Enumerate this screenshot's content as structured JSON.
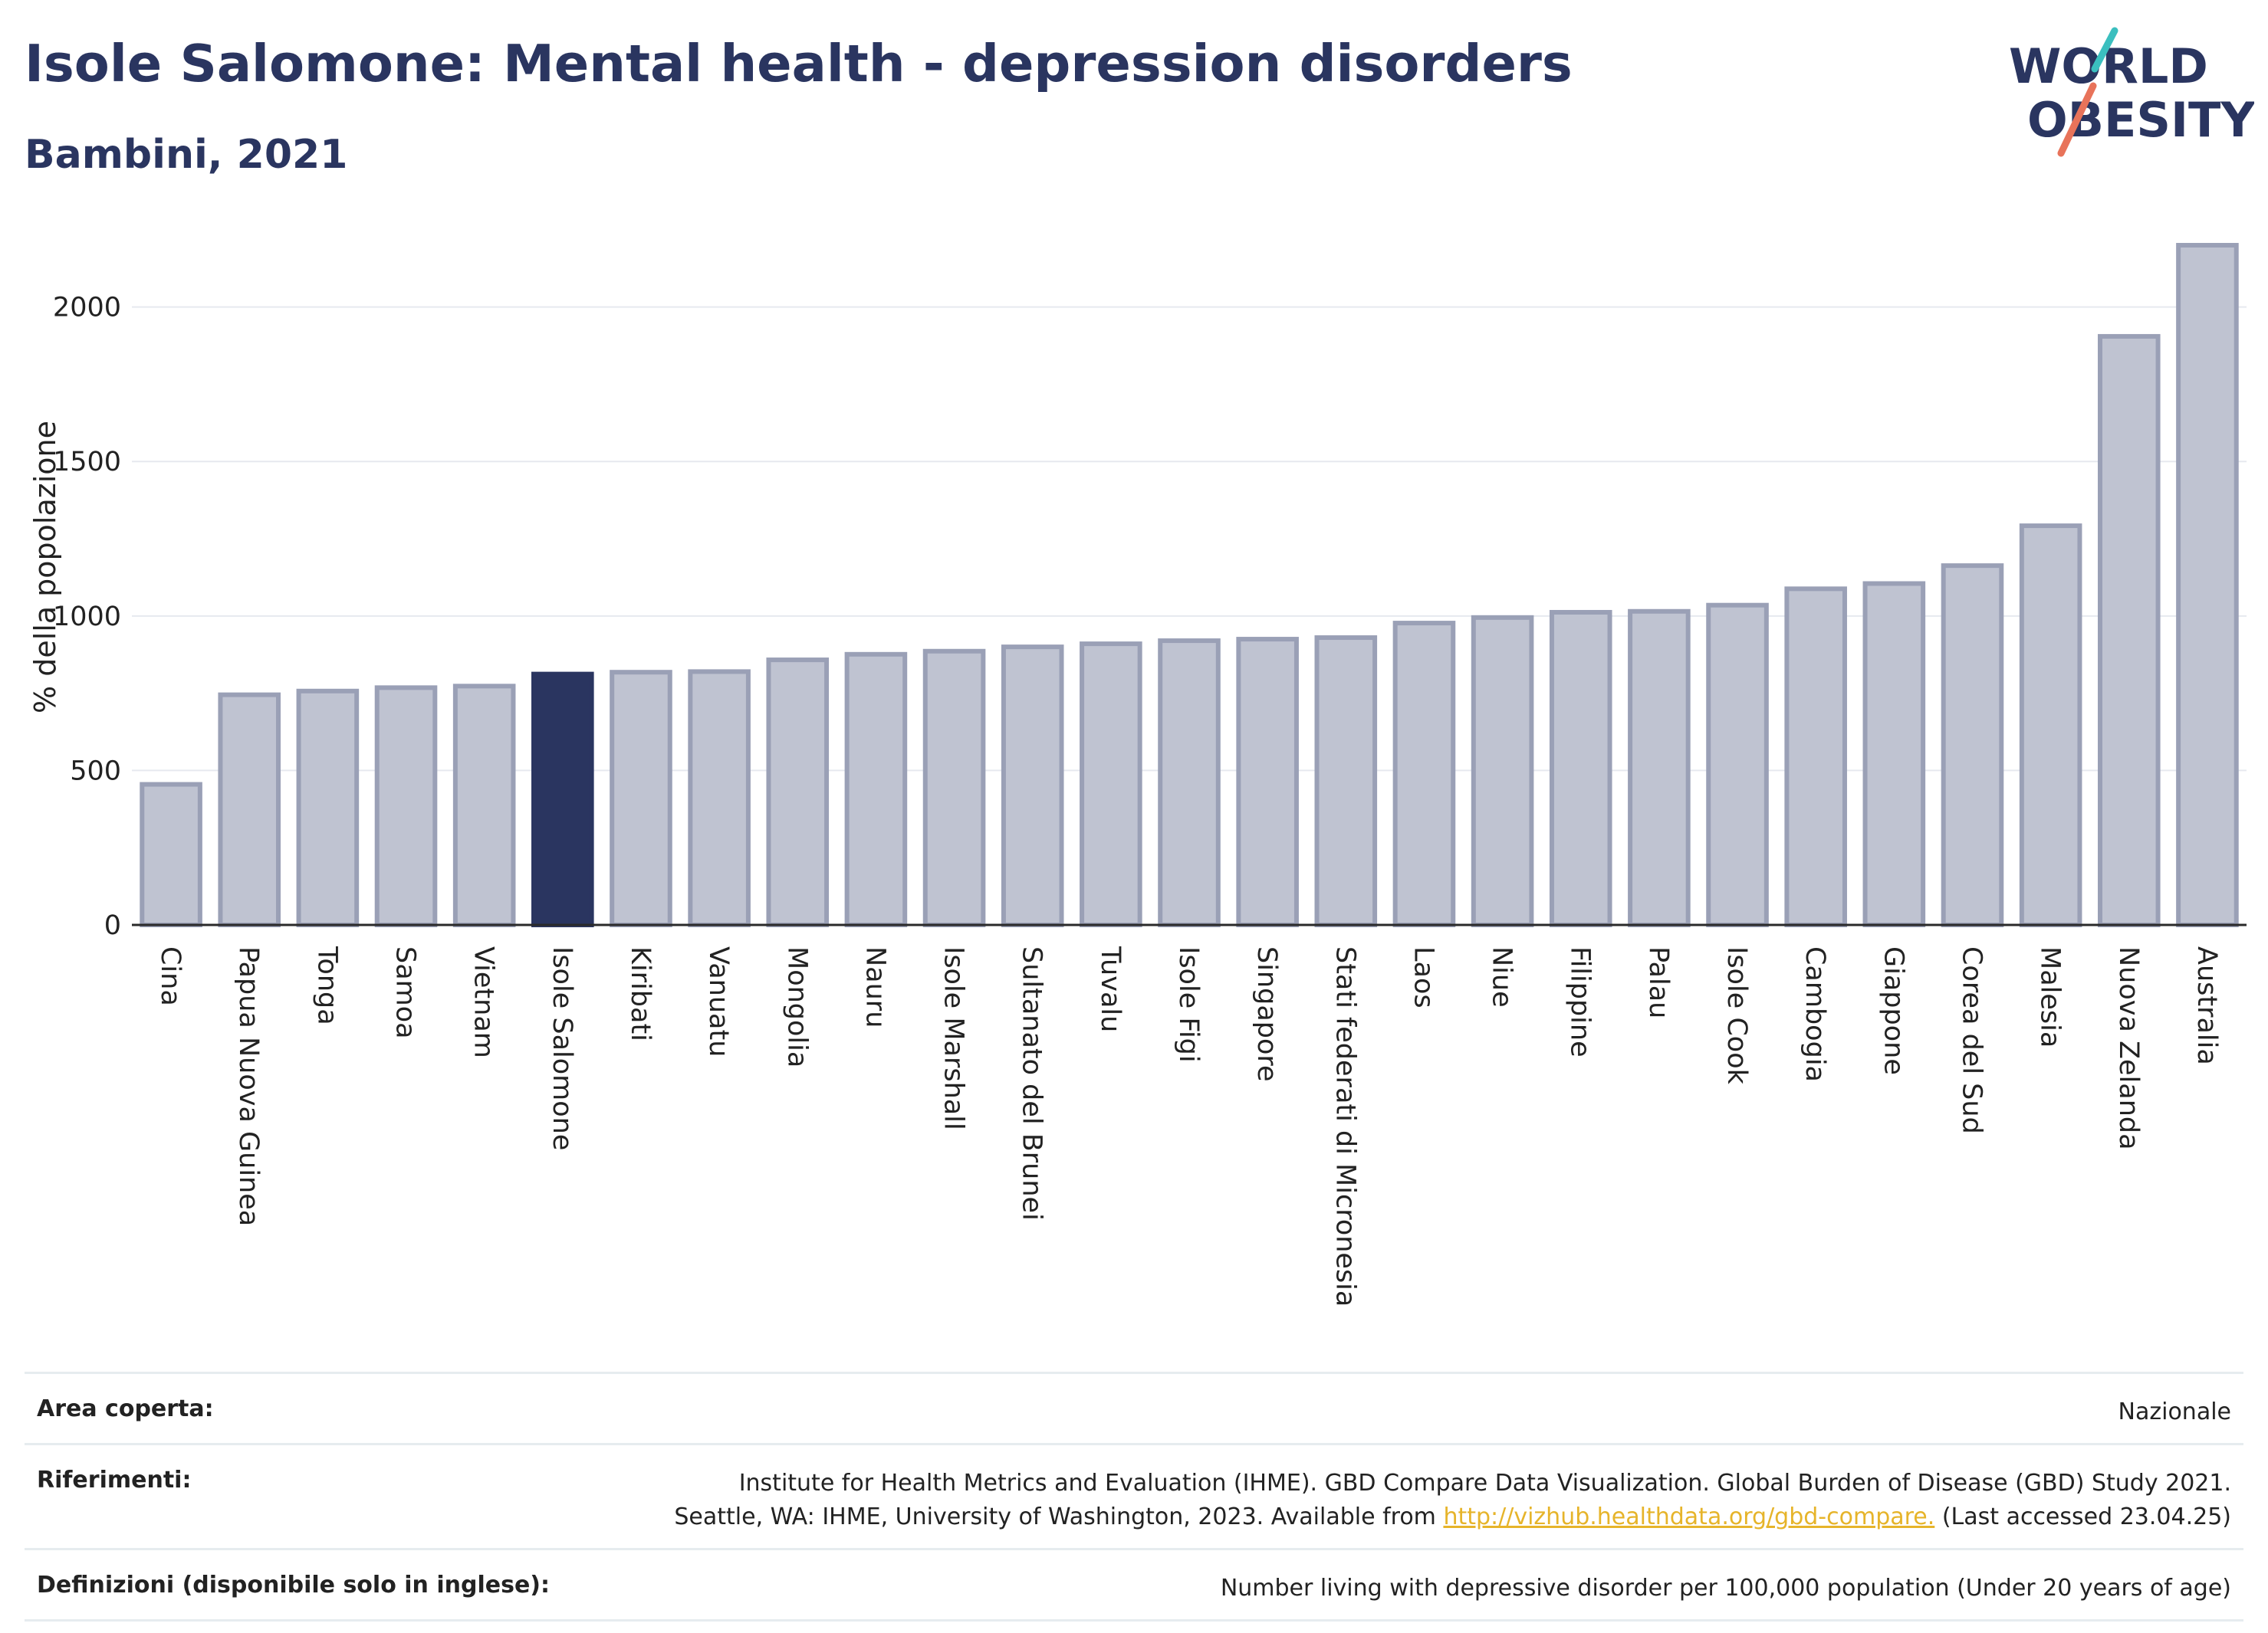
{
  "header": {
    "title": "Isole Salomone: Mental health - depression disorders",
    "subtitle": "Bambini, 2021"
  },
  "logo": {
    "line1": "WORLD",
    "line2": "OBESITY",
    "colors": {
      "text": "#2a3560",
      "accent_teal": "#3bbfbf",
      "accent_red": "#e8735a"
    }
  },
  "chart_data": {
    "type": "bar",
    "title": "Isole Salomone: Mental health - depression disorders",
    "subtitle": "Bambini, 2021",
    "ylabel": "% della popolazione",
    "xlabel": "",
    "ylim": [
      0,
      2200
    ],
    "yticks": [
      0,
      500,
      1000,
      1500,
      2000
    ],
    "grid": true,
    "highlight": "Isole Salomone",
    "colors": {
      "default": "#bfc3d1",
      "default_border": "#9aa0b6",
      "highlight": "#2a3560"
    },
    "categories": [
      "Cina",
      "Papua Nuova Guinea",
      "Tonga",
      "Samoa",
      "Vietnam",
      "Isole Salomone",
      "Kiribati",
      "Vanuatu",
      "Mongolia",
      "Nauru",
      "Isole Marshall",
      "Sultanato del Brunei",
      "Tuvalu",
      "Isole Figi",
      "Singapore",
      "Stati federati di Micronesia",
      "Laos",
      "Niue",
      "Filippine",
      "Palau",
      "Isole Cook",
      "Cambogia",
      "Giappone",
      "Corea del Sud",
      "Malesia",
      "Nuova Zelanda",
      "Australia"
    ],
    "values": [
      455,
      745,
      757,
      768,
      773,
      812,
      818,
      820,
      858,
      876,
      886,
      900,
      910,
      920,
      925,
      930,
      977,
      995,
      1012,
      1015,
      1035,
      1088,
      1105,
      1163,
      1292,
      1905,
      2200
    ]
  },
  "info": {
    "rows": [
      {
        "key": "Area coperta:",
        "value_lines": [
          "Nazionale"
        ]
      },
      {
        "key": "Riferimenti:",
        "line1": "Institute for Health Metrics and Evaluation (IHME). GBD Compare Data Visualization. Global Burden of Disease (GBD) Study 2021.",
        "line2_pre": "Seattle, WA: IHME, University of Washington, 2023. Available from ",
        "link": "http://vizhub.healthdata.org/gbd-compare.",
        "line2_post": " (Last accessed 23.04.25)"
      },
      {
        "key": "Definizioni (disponibile solo in inglese):",
        "value_lines": [
          "Number living with depressive disorder per 100,000 population (Under 20 years of age)"
        ]
      }
    ]
  }
}
